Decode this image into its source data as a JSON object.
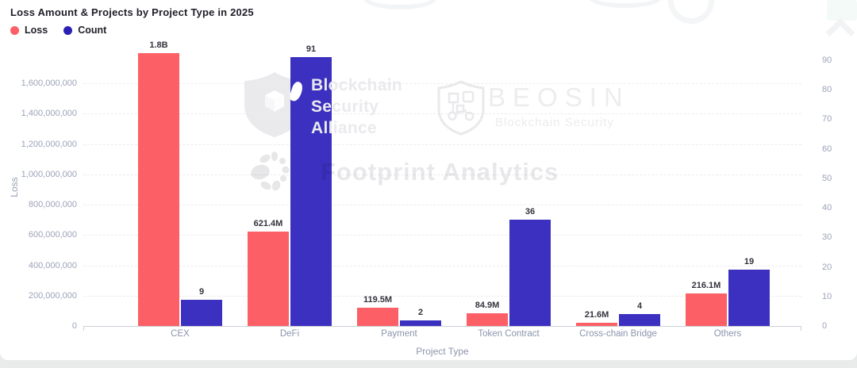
{
  "page": {
    "title": "Loss Amount & Projects by Project Type in 2025"
  },
  "legend": {
    "items": [
      {
        "label": "Loss",
        "color": "#FC5F65"
      },
      {
        "label": "Count",
        "color": "#2B20B4"
      }
    ]
  },
  "chart_data": {
    "type": "bar",
    "title": "Loss Amount & Projects by Project Type in 2025",
    "categories": [
      "CEX",
      "DeFi",
      "Payment",
      "Token Contract",
      "Cross-chain Bridge",
      "Others"
    ],
    "series": [
      {
        "name": "Loss",
        "axis": "left",
        "color": "#FC5F65",
        "values": [
          1800000000,
          621400000,
          119500000,
          84900000,
          21600000,
          216100000
        ],
        "labels": [
          "1.8B",
          "621.4M",
          "119.5M",
          "84.9M",
          "21.6M",
          "216.1M"
        ]
      },
      {
        "name": "Count",
        "axis": "right",
        "color": "#3B30BF",
        "values": [
          9,
          91,
          2,
          36,
          4,
          19
        ],
        "labels": [
          "9",
          "91",
          "2",
          "36",
          "4",
          "19"
        ]
      }
    ],
    "xlabel": "Project Type",
    "ylabel_left": "Loss",
    "left_axis": {
      "min": 0,
      "max": 1600000000,
      "tick_labels": [
        "0",
        "200,000,000",
        "400,000,000",
        "600,000,000",
        "800,000,000",
        "1,000,000,000",
        "1,200,000,000",
        "1,400,000,000",
        "1,600,000,000"
      ]
    },
    "right_axis": {
      "min": 0,
      "max": 90,
      "tick_labels": [
        "0",
        "10",
        "20",
        "30",
        "40",
        "50",
        "60",
        "70",
        "80",
        "90"
      ]
    },
    "grid": "dashed-horizontal",
    "legend_position": "top-left"
  },
  "watermarks": {
    "bsa": {
      "line1": "Blockchain",
      "line2": "Security",
      "line3": "Alliance"
    },
    "beosin": {
      "title": "BEOSIN",
      "subtitle": "Blockchain Security"
    },
    "footprint": {
      "text": "Footprint Analytics"
    }
  },
  "colors": {
    "grid_line": "#ECECF0",
    "axis_line": "#CBCFD6",
    "tick_label": "#9CA3B8",
    "category_label": "#8A94AC",
    "data_label": "#33333E"
  }
}
